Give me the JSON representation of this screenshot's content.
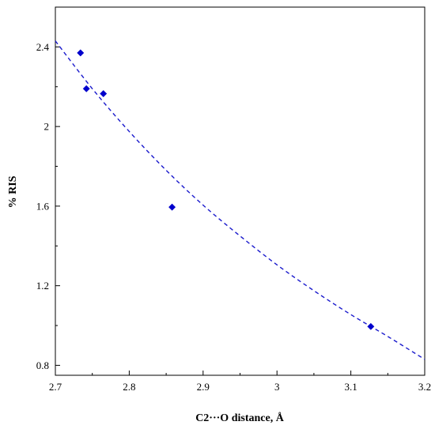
{
  "chart_data": {
    "type": "scatter",
    "xlabel": "C2···O distance, Å",
    "ylabel": "% RIS",
    "xlim": [
      2.7,
      3.2
    ],
    "ylim": [
      0.75,
      2.6
    ],
    "x_ticks": [
      "2.7",
      "2.8",
      "2.9",
      "3",
      "3.1",
      "3.2"
    ],
    "y_ticks": [
      "0.8",
      "1.2",
      "1.6",
      "2",
      "2.4"
    ],
    "grid": false,
    "legend": "none",
    "series": [
      {
        "points": [
          {
            "x": 2.734,
            "y": 2.37
          },
          {
            "x": 2.742,
            "y": 2.19
          },
          {
            "x": 2.765,
            "y": 2.165
          },
          {
            "x": 2.858,
            "y": 1.595
          },
          {
            "x": 3.127,
            "y": 0.995
          }
        ],
        "marker": "diamond",
        "color": "#0000cc"
      }
    ],
    "trendline": {
      "style": "dashed",
      "color": "#1a1acc",
      "points": [
        {
          "x": 2.7,
          "y": 2.43
        },
        {
          "x": 2.75,
          "y": 2.19
        },
        {
          "x": 2.8,
          "y": 1.975
        },
        {
          "x": 2.85,
          "y": 1.78
        },
        {
          "x": 2.9,
          "y": 1.605
        },
        {
          "x": 2.95,
          "y": 1.45
        },
        {
          "x": 3.0,
          "y": 1.305
        },
        {
          "x": 3.05,
          "y": 1.175
        },
        {
          "x": 3.1,
          "y": 1.055
        },
        {
          "x": 3.15,
          "y": 0.945
        },
        {
          "x": 3.2,
          "y": 0.83
        }
      ]
    }
  }
}
